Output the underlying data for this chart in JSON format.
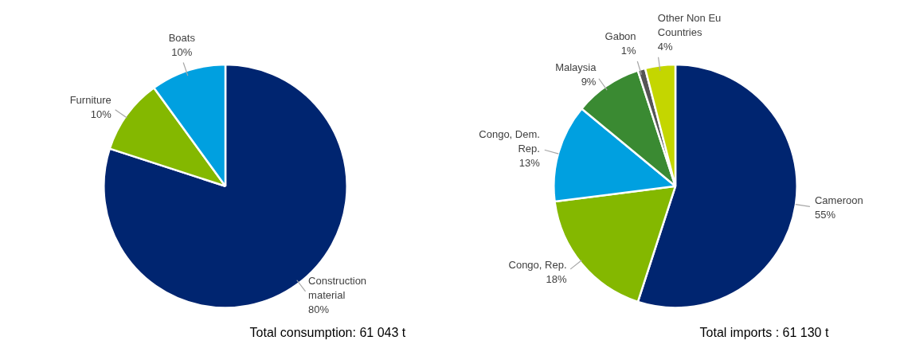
{
  "chart_data": [
    {
      "type": "pie",
      "categories": [
        "Construction material",
        "Furniture",
        "Boats"
      ],
      "values": [
        80,
        10,
        10
      ],
      "value_labels": [
        "80%",
        "10%",
        "10%"
      ],
      "colors": [
        "#002570",
        "#84b800",
        "#00a0e0"
      ],
      "annotations": [
        "Total consumption: 61 043 t"
      ]
    },
    {
      "type": "pie",
      "categories": [
        "Cameroon",
        "Congo, Rep.",
        "Congo, Dem. Rep.",
        "Malaysia",
        "Gabon",
        "Other Non Eu Countries"
      ],
      "values": [
        55,
        18,
        13,
        9,
        1,
        4
      ],
      "value_labels": [
        "55%",
        "18%",
        "13%",
        "9%",
        "1%",
        "4%"
      ],
      "colors": [
        "#002570",
        "#84b800",
        "#00a0e0",
        "#3a8a32",
        "#555555",
        "#c4d600"
      ],
      "annotations": [
        "Total imports : 61 130 t"
      ]
    }
  ]
}
